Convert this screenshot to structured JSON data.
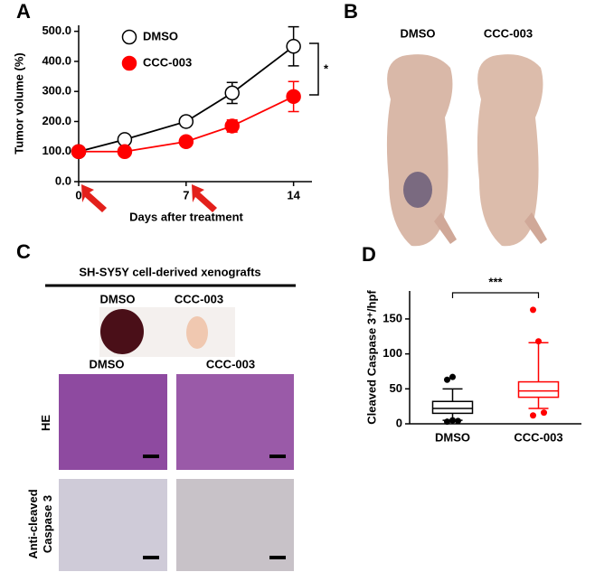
{
  "chart_data": [
    {
      "type": "line",
      "panel": "A",
      "y_label": "Tumor volume (%)",
      "x_label": "Days after treatment",
      "x": [
        0,
        3,
        7,
        10,
        14
      ],
      "series": [
        {
          "name": "DMSO",
          "color": "#000000",
          "marker": "open",
          "values": [
            100,
            140,
            200,
            295,
            450
          ],
          "errors": [
            0,
            10,
            10,
            35,
            65
          ]
        },
        {
          "name": "CCC-003",
          "color": "#ff0000",
          "marker": "filled",
          "values": [
            100,
            100,
            133,
            185,
            283
          ],
          "errors": [
            0,
            8,
            10,
            20,
            50
          ]
        }
      ],
      "xlim": [
        0,
        15.2
      ],
      "xticks": [
        0,
        7,
        14
      ],
      "ylim": [
        0,
        520
      ],
      "yticks": [
        {
          "value": 0,
          "label": "0.0"
        },
        {
          "value": 100,
          "label": "100.0"
        },
        {
          "value": 200,
          "label": "200.0"
        },
        {
          "value": 300,
          "label": "300.0"
        },
        {
          "value": 400,
          "label": "400.0"
        },
        {
          "value": 500,
          "label": "500.0"
        }
      ],
      "legend": "top-left",
      "annotation": "*"
    },
    {
      "type": "box",
      "panel": "D",
      "y_label": "Cleaved Caspase 3⁺/hpf",
      "categories": [
        "DMSO",
        "CCC-003"
      ],
      "boxes": [
        {
          "color": "#000000",
          "min": 5,
          "q1": 15,
          "median": 22,
          "q3": 32,
          "max": 50,
          "outliers": [
            63,
            67,
            4,
            3,
            5
          ]
        },
        {
          "color": "#ff0000",
          "min": 22,
          "q1": 38,
          "median": 47,
          "q3": 60,
          "max": 116,
          "outliers": [
            163,
            118,
            16,
            12
          ]
        }
      ],
      "ylim": [
        0,
        190
      ],
      "yticks": [
        0,
        50,
        100,
        150
      ],
      "annotation": "***"
    }
  ],
  "panels": {
    "B": {
      "letter": "B",
      "labels": [
        "DMSO",
        "CCC-003"
      ]
    },
    "C": {
      "letter": "C",
      "title": "SH-SY5Y cell-derived xenografts",
      "tumor_labels": [
        "DMSO",
        "CCC-003"
      ],
      "column_labels": [
        "DMSO",
        "CCC-003"
      ],
      "row_labels": [
        [
          "HE"
        ],
        [
          "Anti-cleaved",
          "Caspase 3"
        ]
      ]
    }
  }
}
